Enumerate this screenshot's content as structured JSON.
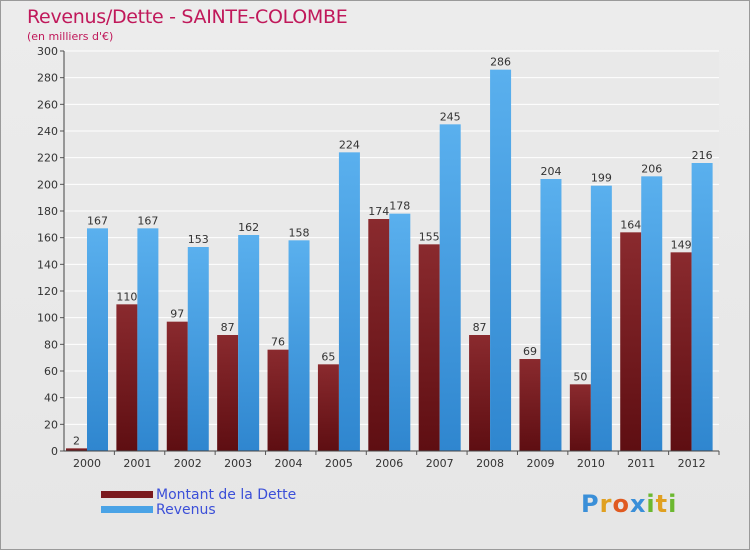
{
  "chart_data": {
    "type": "bar",
    "title": "Revenus/Dette - SAINTE-COLOMBE",
    "subtitle": "(en milliers d'€)",
    "categories": [
      "2000",
      "2001",
      "2002",
      "2003",
      "2004",
      "2005",
      "2006",
      "2007",
      "2008",
      "2009",
      "2010",
      "2011",
      "2012"
    ],
    "series": [
      {
        "name": "Montant de la Dette",
        "color": "#7b1a1e",
        "values": [
          2,
          110,
          97,
          87,
          76,
          65,
          174,
          155,
          87,
          69,
          50,
          164,
          149
        ]
      },
      {
        "name": "Revenus",
        "color": "#4aa3e6",
        "values": [
          167,
          167,
          153,
          162,
          158,
          224,
          178,
          245,
          286,
          204,
          199,
          206,
          216
        ]
      }
    ],
    "ylim": [
      0,
      300
    ],
    "yticks": [
      "0",
      "20",
      "40",
      "60",
      "80",
      "100",
      "120",
      "140",
      "160",
      "180",
      "200",
      "220",
      "240",
      "260",
      "280",
      "300"
    ],
    "grid": true,
    "legend_position": "bottom-left"
  },
  "logo": {
    "text": "Proxiti",
    "letters": [
      "P",
      "r",
      "o",
      "x",
      "i",
      "t",
      "i"
    ],
    "colors": [
      "#3a8fd8",
      "#e0a020",
      "#e05a20",
      "#3a8fd8",
      "#6cb830",
      "#e0a020",
      "#6cb830"
    ]
  }
}
